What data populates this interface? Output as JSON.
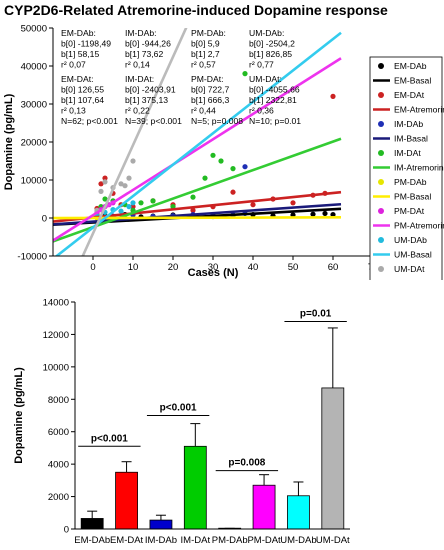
{
  "title": "CYP2D6-Related Atremorine-induced Dopamine response",
  "chart_data": [
    {
      "type": "scatter",
      "xlabel": "Cases (N)",
      "ylabel": "Dopamine (pg/mL)",
      "xlim": [
        -10,
        70
      ],
      "ylim": [
        -10000,
        50000
      ],
      "xticks": [
        0,
        10,
        20,
        30,
        40,
        50,
        60,
        70
      ],
      "yticks": [
        -10000,
        0,
        10000,
        20000,
        30000,
        40000,
        50000
      ],
      "grid": false,
      "legend_position": "right",
      "legend": [
        {
          "label": "EM-DAb",
          "kind": "marker",
          "color": "#000000"
        },
        {
          "label": "EM-Basal",
          "kind": "line",
          "color": "#000000"
        },
        {
          "label": "EM-DAt",
          "kind": "marker",
          "color": "#cc2222"
        },
        {
          "label": "EM-Atremorine",
          "kind": "line",
          "color": "#cc2222"
        },
        {
          "label": "IM-DAb",
          "kind": "marker",
          "color": "#1f2fb5"
        },
        {
          "label": "IM-Basal",
          "kind": "line",
          "color": "#1a1a7a"
        },
        {
          "label": "IM-DAt",
          "kind": "marker",
          "color": "#22bb22"
        },
        {
          "label": "IM-Atremorine",
          "kind": "line",
          "color": "#33cc33"
        },
        {
          "label": "PM-DAb",
          "kind": "marker",
          "color": "#e6e600"
        },
        {
          "label": "PM-Basal",
          "kind": "line",
          "color": "#ffee00"
        },
        {
          "label": "PM-DAt",
          "kind": "marker",
          "color": "#dd22dd"
        },
        {
          "label": "PM-Atremorine",
          "kind": "line",
          "color": "#ee33ee"
        },
        {
          "label": "UM-DAb",
          "kind": "marker",
          "color": "#22bbdd"
        },
        {
          "label": "UM-Basal",
          "kind": "line",
          "color": "#33ccee"
        },
        {
          "label": "UM-DAt",
          "kind": "marker",
          "color": "#aaaaaa"
        },
        {
          "label": "UM-Atremorine",
          "kind": "line",
          "color": "#bbbbbb"
        }
      ],
      "regressions": [
        {
          "name": "EM-Basal",
          "b0": -1198.49,
          "b1": 58.15,
          "color": "#000000",
          "x": [
            -10,
            62
          ]
        },
        {
          "name": "EM-Atremorine",
          "b0": 126.55,
          "b1": 107.64,
          "color": "#cc2222",
          "x": [
            -10,
            62
          ]
        },
        {
          "name": "IM-Basal",
          "b0": -944.26,
          "b1": 73.62,
          "color": "#1a1a7a",
          "x": [
            -10,
            62
          ]
        },
        {
          "name": "IM-Atremorine",
          "b0": -2403.91,
          "b1": 375.13,
          "color": "#33cc33",
          "x": [
            -10,
            62
          ]
        },
        {
          "name": "PM-Basal",
          "b0": 5.9,
          "b1": 2.7,
          "color": "#ffee00",
          "x": [
            -10,
            62
          ]
        },
        {
          "name": "PM-Atremorine",
          "b0": 722.7,
          "b1": 666.3,
          "color": "#ee33ee",
          "x": [
            -10,
            62
          ]
        },
        {
          "name": "UM-Basal",
          "b0": -2504.2,
          "b1": 826.85,
          "color": "#33ccee",
          "x": [
            -10,
            62
          ]
        },
        {
          "name": "UM-Atremorine",
          "b0": -4055.66,
          "b1": 2322.81,
          "color": "#bbbbbb",
          "x": [
            -10,
            24
          ]
        }
      ],
      "points": {
        "EM-DAb": [
          [
            1,
            400
          ],
          [
            3,
            600
          ],
          [
            5,
            200
          ],
          [
            8,
            900
          ],
          [
            12,
            300
          ],
          [
            15,
            500
          ],
          [
            20,
            800
          ],
          [
            25,
            600
          ],
          [
            30,
            400
          ],
          [
            35,
            700
          ],
          [
            40,
            900
          ],
          [
            45,
            600
          ],
          [
            50,
            800
          ],
          [
            55,
            1000
          ],
          [
            58,
            1200
          ],
          [
            60,
            900
          ]
        ],
        "EM-DAt": [
          [
            1,
            2500
          ],
          [
            2,
            9000
          ],
          [
            3,
            10500
          ],
          [
            5,
            6500
          ],
          [
            7,
            3500
          ],
          [
            10,
            3000
          ],
          [
            15,
            4500
          ],
          [
            20,
            3500
          ],
          [
            25,
            2000
          ],
          [
            30,
            3000
          ],
          [
            35,
            6800
          ],
          [
            40,
            3500
          ],
          [
            45,
            5000
          ],
          [
            50,
            4000
          ],
          [
            55,
            6000
          ],
          [
            58,
            6500
          ],
          [
            60,
            32000
          ]
        ],
        "IM-DAb": [
          [
            1,
            300
          ],
          [
            5,
            500
          ],
          [
            10,
            800
          ],
          [
            15,
            400
          ],
          [
            20,
            600
          ],
          [
            25,
            900
          ],
          [
            30,
            700
          ],
          [
            35,
            800
          ],
          [
            38,
            1200
          ],
          [
            38,
            13500
          ]
        ],
        "IM-DAt": [
          [
            1,
            1000
          ],
          [
            2,
            3000
          ],
          [
            3,
            5000
          ],
          [
            5,
            4500
          ],
          [
            8,
            3500
          ],
          [
            10,
            2000
          ],
          [
            12,
            4000
          ],
          [
            15,
            4500
          ],
          [
            20,
            3000
          ],
          [
            25,
            5500
          ],
          [
            28,
            10500
          ],
          [
            30,
            16500
          ],
          [
            32,
            15000
          ],
          [
            35,
            13000
          ],
          [
            38,
            38000
          ]
        ],
        "PM-DAb": [
          [
            1,
            0
          ],
          [
            2,
            50
          ],
          [
            3,
            0
          ],
          [
            4,
            20
          ],
          [
            5,
            10
          ]
        ],
        "PM-DAt": [
          [
            1,
            1500
          ],
          [
            2,
            2200
          ],
          [
            3,
            3000
          ],
          [
            4,
            3500
          ],
          [
            5,
            4000
          ]
        ],
        "UM-DAb": [
          [
            1,
            500
          ],
          [
            3,
            1500
          ],
          [
            5,
            2200
          ],
          [
            7,
            1800
          ],
          [
            9,
            3000
          ],
          [
            10,
            4000
          ]
        ],
        "UM-DAt": [
          [
            1,
            2000
          ],
          [
            2,
            7000
          ],
          [
            3,
            9500
          ],
          [
            5,
            8000
          ],
          [
            7,
            9000
          ],
          [
            8,
            8500
          ],
          [
            9,
            10500
          ],
          [
            10,
            15000
          ]
        ]
      },
      "stats": [
        {
          "group": "EM-DAb",
          "b0": "-1198,49",
          "b1": "58,15",
          "r2": "0,07"
        },
        {
          "group": "IM-DAb",
          "b0": "-944,26",
          "b1": "73,62",
          "r2": "0,14"
        },
        {
          "group": "PM-DAb",
          "b0": "5,9",
          "b1": "2,7",
          "r2": "0,57"
        },
        {
          "group": "UM-DAb",
          "b0": "-2504,2",
          "b1": "826,85",
          "r2": "0,77"
        },
        {
          "group": "EM-DAt",
          "b0": "126,55",
          "b1": "107,64",
          "r2": "0,13",
          "n": "N=62; p<0.001"
        },
        {
          "group": "IM-DAt",
          "b0": "-2403,91",
          "b1": "375,13",
          "r2": "0,22",
          "n": "N=39; p<0.001"
        },
        {
          "group": "PM-DAt",
          "b0": "722,7",
          "b1": "666,3",
          "r2": "0,44",
          "n": "N=5; p=0.008"
        },
        {
          "group": "UM-DAt",
          "b0": "-4055,66",
          "b1": "2322,81",
          "r2": "0,36",
          "n": "N=10; p=0.01"
        }
      ]
    },
    {
      "type": "bar",
      "xlabel": "",
      "ylabel": "Dopamine (pg/mL)",
      "ylim": [
        0,
        14000
      ],
      "yticks": [
        0,
        2000,
        4000,
        6000,
        8000,
        10000,
        12000,
        14000
      ],
      "grid": false,
      "categories": [
        "EM-DAb",
        "EM-DAt",
        "IM-DAb",
        "IM-DAt",
        "PM-DAb",
        "PM-DAt",
        "UM-DAb",
        "UM-DAt"
      ],
      "values": [
        650,
        3500,
        550,
        5100,
        20,
        2700,
        2050,
        8700
      ],
      "errors": [
        450,
        650,
        300,
        1400,
        20,
        650,
        850,
        3700
      ],
      "colors": [
        "#000000",
        "#ff0000",
        "#0000cc",
        "#00cc00",
        "#ffff00",
        "#ff00ff",
        "#00ffff",
        "#b4b4b4"
      ],
      "significance": [
        {
          "label": "p<0.001",
          "pair": [
            0,
            1
          ],
          "y": 5100
        },
        {
          "label": "p<0.001",
          "pair": [
            2,
            3
          ],
          "y": 7000
        },
        {
          "label": "p=0.008",
          "pair": [
            4,
            5
          ],
          "y": 3600
        },
        {
          "label": "p=0.01",
          "pair": [
            6,
            7
          ],
          "y": 12800
        }
      ]
    }
  ]
}
